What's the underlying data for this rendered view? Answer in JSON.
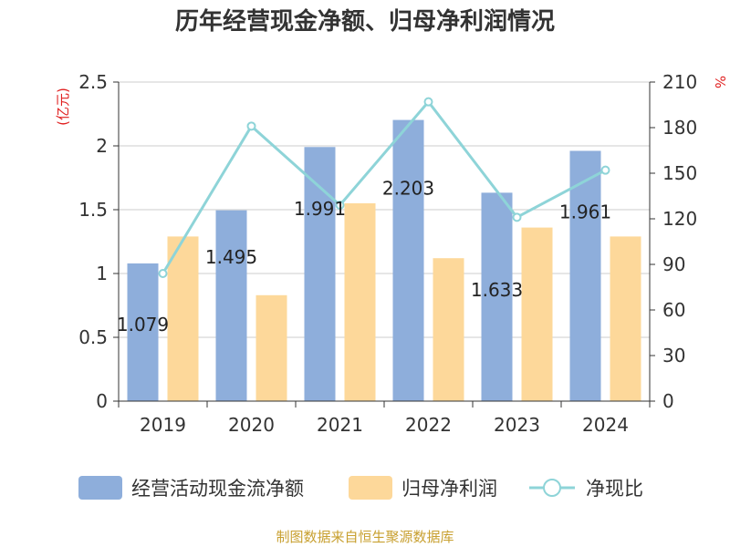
{
  "chart_data": {
    "type": "bar",
    "title": "历年经营现金净额、归母净利润情况",
    "categories": [
      "2019",
      "2020",
      "2021",
      "2022",
      "2023",
      "2024"
    ],
    "series": [
      {
        "name": "经营活动现金流净额",
        "type": "bar",
        "axis": "left",
        "color": "#8eaedb",
        "values": [
          1.079,
          1.495,
          1.991,
          2.203,
          1.633,
          1.961
        ]
      },
      {
        "name": "归母净利润",
        "type": "bar",
        "axis": "left",
        "color": "#fdd89a",
        "values": [
          1.29,
          0.83,
          1.55,
          1.12,
          1.36,
          1.29
        ]
      },
      {
        "name": "净现比",
        "type": "line",
        "axis": "right",
        "color": "#8ed4d8",
        "values": [
          84,
          181,
          129,
          197,
          121,
          152
        ]
      }
    ],
    "data_labels": [
      "1.079",
      "1.495",
      "1.991",
      "2.203",
      "1.633",
      "1.961"
    ],
    "y_left": {
      "unit": "(亿元)",
      "ylim": [
        0,
        2.5
      ],
      "ticks": [
        "0",
        "0.5",
        "1",
        "1.5",
        "2",
        "2.5"
      ],
      "tick_values": [
        0,
        0.5,
        1,
        1.5,
        2,
        2.5
      ]
    },
    "y_right": {
      "unit": "%",
      "ylim": [
        0,
        210
      ],
      "ticks": [
        "0",
        "30",
        "60",
        "90",
        "120",
        "150",
        "180",
        "210"
      ],
      "tick_values": [
        0,
        30,
        60,
        90,
        120,
        150,
        180,
        210
      ]
    },
    "grid": true,
    "legend_position": "bottom"
  },
  "source_text": "制图数据来自恒生聚源数据库",
  "colors": {
    "unit_red": "#e02020",
    "source_gold": "#c8a030",
    "axis": "#333333",
    "grid": "#cccccc"
  }
}
